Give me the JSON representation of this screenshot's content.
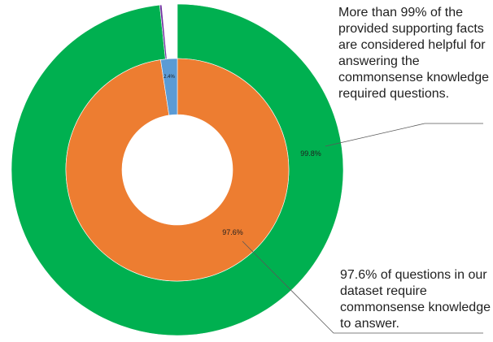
{
  "chart_data": [
    {
      "type": "pie",
      "ring": "outer",
      "labels": [
        "99.8%",
        ""
      ],
      "values": [
        99.8,
        0.2
      ],
      "colors": [
        "#00b050",
        "#7030a0"
      ]
    },
    {
      "type": "pie",
      "ring": "inner",
      "labels": [
        "97.6%",
        "2.4%"
      ],
      "values": [
        97.6,
        2.4
      ],
      "colors": [
        "#ed7d31",
        "#5b9bd5"
      ]
    }
  ],
  "annotations": {
    "top": "More than 99% of the provided supporting facts are considered helpful for answering the commonsense knowledge required questions.",
    "bottom": "97.6% of questions in our dataset require commonsense knowledge to answer."
  }
}
